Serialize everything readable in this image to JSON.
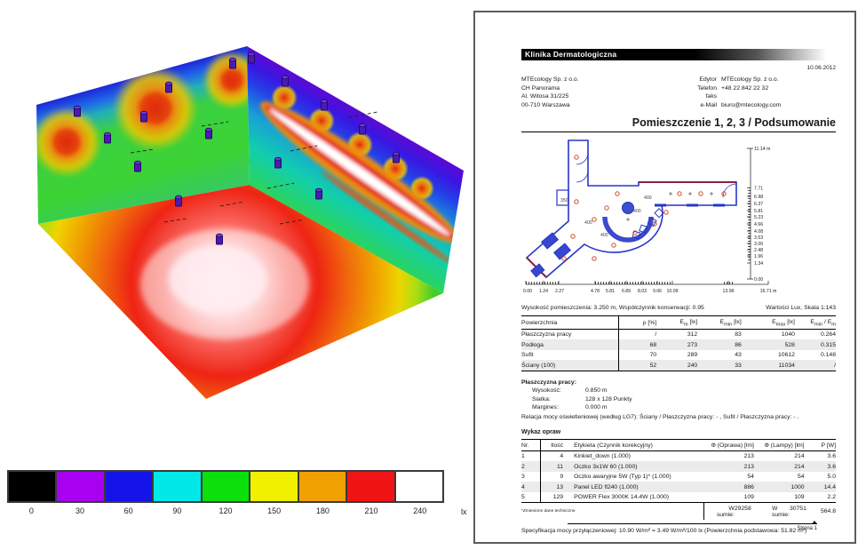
{
  "legend": {
    "unit": "lx",
    "values": [
      "0",
      "30",
      "60",
      "90",
      "120",
      "150",
      "180",
      "210",
      "240"
    ],
    "colors": [
      "#000000",
      "#a800f0",
      "#1414e8",
      "#00e8e8",
      "#0ce00c",
      "#f0f000",
      "#f0a000",
      "#f01414",
      "#ffffff"
    ]
  },
  "document": {
    "project_name": "Klinika Dermatologiczna",
    "date": "10.06.2012",
    "company_lines": [
      "MTEcology Sp. z o.o.",
      "CH Panorama",
      "Al. Witosa 31/225",
      "00-710 Warszawa"
    ],
    "contact": {
      "rows": [
        {
          "label": "Edytor",
          "value": "MTEcology Sp. z o.o."
        },
        {
          "label": "Telefon",
          "value": "+48 22 842 22 32"
        },
        {
          "label": "faks",
          "value": ""
        },
        {
          "label": "e-Mail",
          "value": "biuro@mtecology.com"
        }
      ]
    },
    "page_title": "Pomieszczenie 1, 2, 3 / Podsumowanie",
    "plan": {
      "y_ticks": [
        "11.14 m",
        "7.71",
        "6.98",
        "6.37",
        "5.81",
        "5.23",
        "4.66",
        "4.08",
        "3.53",
        "3.00",
        "2.48",
        "1.96",
        "1.34",
        "0.00"
      ],
      "x_ticks": [
        "0.00",
        "1.24",
        "2.27",
        "4.78",
        "5.81",
        "6.89",
        "8.03",
        "9.06",
        "10.09",
        "13.96",
        "16.71 m"
      ],
      "contour_labels": [
        "350",
        "400",
        "400",
        "400",
        "400"
      ]
    },
    "info_left": "Wysokość pomieszczenia: 3.250 m, Współczynnik konserwacji: 0.95",
    "info_right": "Wartości Lux, Skala 1:143",
    "surface_table": {
      "headers": [
        "Powierzchnia",
        "ρ [%]",
        "E<sub>m</sub> [lx]",
        "E<sub>min</sub> [lx]",
        "E<sub>max</sub> [lx]",
        "E<sub>min</sub> / E<sub>m</sub>"
      ],
      "rows": [
        [
          "Płaszczyzna pracy",
          "/",
          "312",
          "83",
          "1040",
          "0.264"
        ],
        [
          "Podłoga",
          "68",
          "273",
          "86",
          "528",
          "0.315"
        ],
        [
          "Sufit",
          "70",
          "289",
          "43",
          "10612",
          "0.148"
        ],
        [
          "Ściany (100)",
          "52",
          "240",
          "33",
          "11034",
          "/"
        ]
      ]
    },
    "workplane": {
      "title": "Płaszczyzna pracy:",
      "rows": [
        {
          "label": "Wysokość:",
          "value": "0.850 m"
        },
        {
          "label": "Siatka:",
          "value": "128 x 128 Punkty"
        },
        {
          "label": "Margines:",
          "value": "0.000 m"
        }
      ],
      "relation": "Relacja mocy oświetleniowej (według LG7): Ściany / Płaszczyzna pracy: - , Sufit / Płaszczyzna pracy: - ."
    },
    "luminaires": {
      "title": "Wykaz opraw",
      "headers": [
        "Nr.",
        "Ilość",
        "Etykieta (Czynnik korekcyjny)",
        "Φ (Oprawa) [lm]",
        "Φ (Lampy) [lm]",
        "P [W]"
      ],
      "rows": [
        [
          "1",
          "4",
          "Kinkiet_down (1.000)",
          "213",
          "214",
          "3.6"
        ],
        [
          "2",
          "11",
          "Oczko 3x1W 60 (1.000)",
          "213",
          "214",
          "3.6"
        ],
        [
          "3",
          "9",
          "Oczko awaryjne 5W (Typ 1)* (1.000)",
          "54",
          "54",
          "5.0"
        ],
        [
          "4",
          "13",
          "Panel LED fl240 (1.000)",
          "886",
          "1000",
          "14.4"
        ],
        [
          "5",
          "129",
          "POWER Flex 3000K 14.4W (1.000)",
          "109",
          "109",
          "2.2"
        ]
      ],
      "footnote": "*Zmienione dane techniczne",
      "totals": {
        "label1": "W sumie:",
        "oprawa": "29258",
        "label2": "W sumie:",
        "lampy": "30751",
        "p": "564.8"
      }
    },
    "spec_line": "Specyfikacja mocy przyłączeniowej: 10.90 W/m² = 3.49 W/m²/100 lx (Powierzchnia podstawowa: 51.82 m²)",
    "page_footer": "Strona 1"
  }
}
